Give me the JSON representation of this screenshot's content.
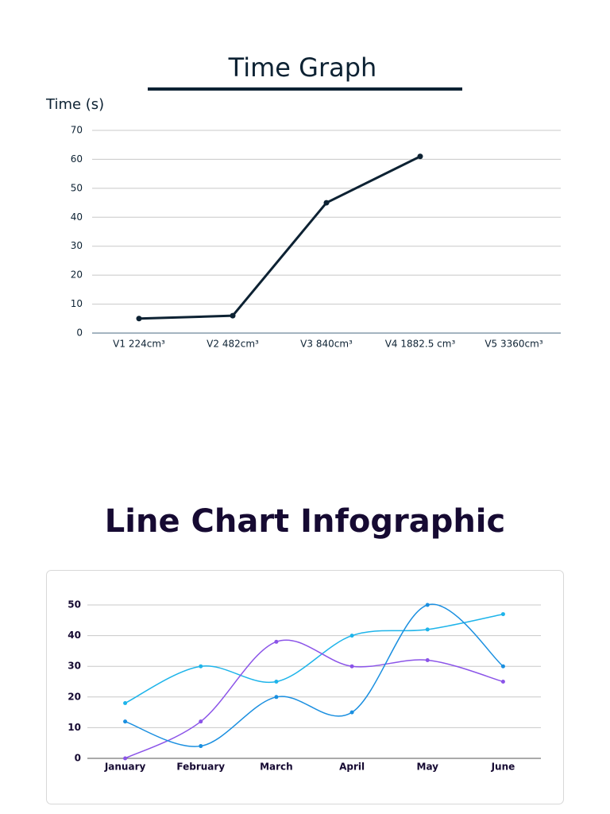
{
  "chart_data": [
    {
      "type": "line",
      "title": "Time Graph",
      "y_label": "Time (s)",
      "categories": [
        "V1 224cm³",
        "V2 482cm³",
        "V3 840cm³",
        "V4 1882.5 cm³",
        "V5 3360cm³"
      ],
      "values": [
        5,
        6,
        45,
        61,
        null
      ],
      "color": "#0d2233",
      "ylim": [
        0,
        70
      ],
      "yticks": [
        0,
        10,
        20,
        30,
        40,
        50,
        60,
        70
      ],
      "grid": true,
      "smooth": false
    },
    {
      "type": "line",
      "title": "Line Chart Infographic",
      "categories": [
        "January",
        "February",
        "March",
        "April",
        "May",
        "June"
      ],
      "series": [
        {
          "color": "#1eb4ea",
          "values": [
            18,
            30,
            25,
            40,
            42,
            47
          ]
        },
        {
          "color": "#8b54e8",
          "values": [
            0,
            12,
            38,
            30,
            32,
            25
          ]
        },
        {
          "color": "#1a8fe0",
          "values": [
            12,
            4,
            20,
            15,
            50,
            30
          ]
        }
      ],
      "ylim": [
        0,
        50
      ],
      "yticks": [
        0,
        10,
        20,
        30,
        40,
        50
      ],
      "grid": true,
      "smooth": true
    }
  ]
}
